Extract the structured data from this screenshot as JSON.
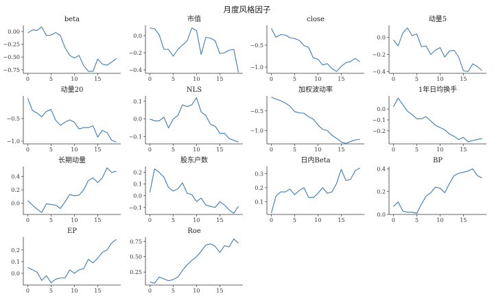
{
  "figure": {
    "suptitle": "月度风格因子"
  },
  "chart_data": [
    {
      "type": "line",
      "title": "beta",
      "x": [
        0,
        1,
        2,
        3,
        4,
        5,
        6,
        7,
        8,
        9,
        10,
        11,
        12,
        13,
        14,
        15,
        16,
        17,
        18,
        19
      ],
      "values": [
        -0.03,
        0.03,
        0.02,
        0.09,
        -0.08,
        -0.07,
        -0.02,
        -0.08,
        -0.32,
        -0.47,
        -0.52,
        -0.47,
        -0.67,
        -0.78,
        -0.78,
        -0.54,
        -0.64,
        -0.66,
        -0.6,
        -0.53
      ],
      "ylim": [
        -0.82,
        0.12
      ],
      "yticks": [
        0.0,
        -0.25,
        -0.5,
        -0.75
      ],
      "ytick_labels": [
        "0.00",
        "−0.25",
        "−0.50",
        "−0.75"
      ],
      "xticks": [
        0,
        5,
        10,
        15
      ],
      "xtick_labels": [
        "0",
        "5",
        "10",
        "15"
      ]
    },
    {
      "type": "line",
      "title": "市值",
      "x": [
        0,
        1,
        2,
        3,
        4,
        5,
        6,
        7,
        8,
        9,
        10,
        11,
        12,
        13,
        14,
        15,
        16,
        17,
        18,
        19
      ],
      "values": [
        0.09,
        0.08,
        0.01,
        -0.16,
        -0.16,
        -0.24,
        -0.16,
        -0.11,
        -0.06,
        0.09,
        0.06,
        -0.22,
        -0.02,
        -0.03,
        -0.06,
        -0.21,
        -0.2,
        -0.17,
        -0.16,
        -0.43
      ],
      "ylim": [
        -0.44,
        0.12
      ],
      "yticks": [
        0.0,
        -0.2,
        -0.4
      ],
      "ytick_labels": [
        "0.0",
        "−0.2",
        "−0.4"
      ],
      "xticks": [
        0,
        5,
        10,
        15
      ],
      "xtick_labels": [
        "0",
        "5",
        "10",
        "15"
      ]
    },
    {
      "type": "line",
      "title": "close",
      "x": [
        0,
        1,
        2,
        3,
        4,
        5,
        6,
        7,
        8,
        9,
        10,
        11,
        12,
        13,
        14,
        15,
        16,
        17,
        18,
        19
      ],
      "values": [
        -0.12,
        -0.32,
        -0.26,
        -0.27,
        -0.33,
        -0.35,
        -0.39,
        -0.51,
        -0.55,
        -0.79,
        -0.82,
        -0.95,
        -0.92,
        -1.03,
        -1.1,
        -0.98,
        -0.9,
        -0.87,
        -0.8,
        -0.88
      ],
      "ylim": [
        -1.14,
        -0.05
      ],
      "yticks": [
        -0.5,
        -1.0
      ],
      "ytick_labels": [
        "−0.5",
        "−1.0"
      ],
      "xticks": [
        0,
        5,
        10,
        15
      ],
      "xtick_labels": [
        "0",
        "5",
        "10",
        "15"
      ]
    },
    {
      "type": "line",
      "title": "动量5",
      "x": [
        0,
        1,
        2,
        3,
        4,
        5,
        6,
        7,
        8,
        9,
        10,
        11,
        12,
        13,
        14,
        15,
        16,
        17,
        18,
        19
      ],
      "values": [
        -0.03,
        -0.1,
        0.05,
        0.11,
        0.02,
        0.04,
        -0.11,
        -0.1,
        -0.2,
        -0.15,
        -0.12,
        -0.23,
        -0.16,
        -0.15,
        -0.23,
        -0.39,
        -0.4,
        -0.31,
        -0.34,
        -0.39
      ],
      "ylim": [
        -0.42,
        0.14
      ],
      "yticks": [
        0.0,
        -0.2,
        -0.4
      ],
      "ytick_labels": [
        "0.0",
        "−0.2",
        "−0.4"
      ],
      "xticks": [
        0,
        5,
        10,
        15
      ],
      "xtick_labels": [
        "0",
        "5",
        "10",
        "15"
      ]
    },
    {
      "type": "line",
      "title": "动量20",
      "x": [
        0,
        1,
        2,
        3,
        4,
        5,
        6,
        7,
        8,
        9,
        10,
        11,
        12,
        13,
        14,
        15,
        16,
        17,
        18,
        19
      ],
      "values": [
        -0.05,
        -0.32,
        -0.38,
        -0.46,
        -0.34,
        -0.3,
        -0.54,
        -0.65,
        -0.58,
        -0.53,
        -0.58,
        -0.73,
        -0.7,
        -0.7,
        -0.66,
        -0.91,
        -0.76,
        -0.81,
        -0.98,
        -1.02
      ],
      "ylim": [
        -1.06,
        0.0
      ],
      "yticks": [
        -0.5,
        -1.0
      ],
      "ytick_labels": [
        "−0.5",
        "−1.0"
      ],
      "xticks": [
        0,
        5,
        10,
        15
      ],
      "xtick_labels": [
        "0",
        "5",
        "10",
        "15"
      ]
    },
    {
      "type": "line",
      "title": "NLS",
      "x": [
        0,
        1,
        2,
        3,
        4,
        5,
        6,
        7,
        8,
        9,
        10,
        11,
        12,
        13,
        14,
        15,
        16,
        17,
        18,
        19
      ],
      "values": [
        0.0,
        -0.01,
        -0.01,
        0.01,
        -0.05,
        0.0,
        0.02,
        0.08,
        0.07,
        0.08,
        0.12,
        0.04,
        0.02,
        -0.03,
        -0.04,
        -0.08,
        -0.08,
        -0.11,
        -0.12,
        -0.13
      ],
      "ylim": [
        -0.14,
        0.13
      ],
      "yticks": [
        0.1,
        0.0,
        -0.1
      ],
      "ytick_labels": [
        "0.1",
        "0.0",
        "−0.1"
      ],
      "xticks": [
        0,
        5,
        10,
        15
      ],
      "xtick_labels": [
        "0",
        "5",
        "10",
        "15"
      ]
    },
    {
      "type": "line",
      "title": "加权波动率",
      "x": [
        0,
        1,
        2,
        3,
        4,
        5,
        6,
        7,
        8,
        9,
        10,
        11,
        12,
        13,
        14,
        15,
        16,
        17,
        18,
        19
      ],
      "values": [
        -0.15,
        -0.2,
        -0.24,
        -0.3,
        -0.38,
        -0.52,
        -0.55,
        -0.56,
        -0.65,
        -0.71,
        -0.86,
        -0.97,
        -1.0,
        -1.12,
        -1.2,
        -1.29,
        -1.33,
        -1.28,
        -1.24,
        -1.22
      ],
      "ylim": [
        -1.34,
        -0.12
      ],
      "yticks": [
        -0.5,
        -1.0
      ],
      "ytick_labels": [
        "−0.5",
        "−1.0"
      ],
      "xticks": [
        0,
        5,
        10,
        15
      ],
      "xtick_labels": [
        "0",
        "5",
        "10",
        "15"
      ]
    },
    {
      "type": "line",
      "title": "1年日均换手",
      "x": [
        0,
        1,
        2,
        3,
        4,
        5,
        6,
        7,
        8,
        9,
        10,
        11,
        12,
        13,
        14,
        15,
        16,
        17,
        18,
        19
      ],
      "values": [
        0.02,
        0.1,
        0.04,
        -0.02,
        -0.05,
        -0.09,
        -0.09,
        -0.07,
        -0.11,
        -0.15,
        -0.17,
        -0.19,
        -0.23,
        -0.25,
        -0.28,
        -0.26,
        -0.3,
        -0.29,
        -0.28,
        -0.27
      ],
      "ylim": [
        -0.32,
        0.12
      ],
      "yticks": [
        0.0,
        -0.1,
        -0.2
      ],
      "ytick_labels": [
        "0.0",
        "−0.1",
        "−0.2"
      ],
      "xticks": [
        0,
        5,
        10,
        15
      ],
      "xtick_labels": [
        "0",
        "5",
        "10",
        "15"
      ]
    },
    {
      "type": "line",
      "title": "长期动量",
      "x": [
        0,
        1,
        2,
        3,
        4,
        5,
        6,
        7,
        8,
        9,
        10,
        11,
        12,
        13,
        14,
        15,
        16,
        17,
        18,
        19
      ],
      "values": [
        0.04,
        -0.03,
        -0.09,
        -0.14,
        -0.01,
        -0.02,
        -0.03,
        -0.08,
        0.02,
        0.13,
        0.11,
        0.12,
        0.2,
        0.34,
        0.38,
        0.31,
        0.38,
        0.53,
        0.46,
        0.48
      ],
      "ylim": [
        -0.17,
        0.55
      ],
      "yticks": [
        0.4,
        0.2,
        0.0
      ],
      "ytick_labels": [
        "0.4",
        "0.2",
        "0.0"
      ],
      "xticks": [
        0,
        5,
        10,
        15
      ],
      "xtick_labels": [
        "0",
        "5",
        "10",
        "15"
      ]
    },
    {
      "type": "line",
      "title": "股东户数",
      "x": [
        0,
        1,
        2,
        3,
        4,
        5,
        6,
        7,
        8,
        9,
        10,
        11,
        12,
        13,
        14,
        15,
        16,
        17,
        18,
        19
      ],
      "values": [
        0.03,
        0.23,
        0.2,
        0.16,
        0.07,
        0.04,
        0.06,
        0.11,
        0.02,
        0.01,
        -0.05,
        -0.02,
        -0.08,
        -0.09,
        -0.1,
        -0.05,
        -0.08,
        -0.12,
        -0.15,
        -0.09
      ],
      "ylim": [
        -0.16,
        0.25
      ],
      "yticks": [
        0.2,
        0.1,
        0.0,
        -0.1
      ],
      "ytick_labels": [
        "0.2",
        "0.1",
        "0.0",
        "−0.1"
      ],
      "xticks": [
        0,
        5,
        10,
        15
      ],
      "xtick_labels": [
        "0",
        "5",
        "10",
        "15"
      ]
    },
    {
      "type": "line",
      "title": "日内Beta",
      "x": [
        0,
        1,
        2,
        3,
        4,
        5,
        6,
        7,
        8,
        9,
        10,
        11,
        12,
        13,
        14,
        15,
        16,
        17,
        18,
        19
      ],
      "values": [
        0.02,
        0.14,
        0.17,
        0.17,
        0.19,
        0.15,
        0.18,
        0.2,
        0.13,
        0.13,
        0.16,
        0.2,
        0.16,
        0.17,
        0.23,
        0.33,
        0.25,
        0.26,
        0.32,
        0.34
      ],
      "ylim": [
        0.01,
        0.35
      ],
      "yticks": [
        0.3,
        0.2,
        0.1
      ],
      "ytick_labels": [
        "0.3",
        "0.2",
        "0.1"
      ],
      "xticks": [
        0,
        5,
        10,
        15
      ],
      "xtick_labels": [
        "0",
        "5",
        "10",
        "15"
      ]
    },
    {
      "type": "line",
      "title": "BP",
      "x": [
        0,
        1,
        2,
        3,
        4,
        5,
        6,
        7,
        8,
        9,
        10,
        11,
        12,
        13,
        14,
        15,
        16,
        17,
        18,
        19
      ],
      "values": [
        0.07,
        0.11,
        0.03,
        0.02,
        0.02,
        0.01,
        0.09,
        0.16,
        0.19,
        0.24,
        0.23,
        0.19,
        0.27,
        0.34,
        0.36,
        0.37,
        0.38,
        0.4,
        0.34,
        0.32
      ],
      "ylim": [
        0.0,
        0.42
      ],
      "yticks": [
        0.4,
        0.2,
        0.0
      ],
      "ytick_labels": [
        "0.4",
        "0.2",
        "0.0"
      ],
      "xticks": [
        0,
        5,
        10,
        15
      ],
      "xtick_labels": [
        "0",
        "5",
        "10",
        "15"
      ]
    },
    {
      "type": "line",
      "title": "EP",
      "x": [
        0,
        1,
        2,
        3,
        4,
        5,
        6,
        7,
        8,
        9,
        10,
        11,
        12,
        13,
        14,
        15,
        16,
        17,
        18,
        19
      ],
      "values": [
        0.05,
        0.03,
        0.01,
        -0.06,
        -0.02,
        -0.08,
        -0.05,
        -0.04,
        -0.04,
        0.03,
        0.0,
        0.03,
        0.04,
        0.12,
        0.09,
        0.13,
        0.18,
        0.2,
        0.26,
        0.29
      ],
      "ylim": [
        -0.1,
        0.31
      ],
      "yticks": [
        0.2,
        0.1,
        0.0
      ],
      "ytick_labels": [
        "0.2",
        "0.1",
        "0.0"
      ],
      "xticks": [
        0,
        5,
        10,
        15
      ],
      "xtick_labels": [
        "0",
        "5",
        "10",
        "15"
      ]
    },
    {
      "type": "line",
      "title": "Roe",
      "x": [
        0,
        1,
        2,
        3,
        4,
        5,
        6,
        7,
        8,
        9,
        10,
        11,
        12,
        13,
        14,
        15,
        16,
        17,
        18,
        19
      ],
      "values": [
        0.09,
        0.07,
        0.17,
        0.14,
        0.11,
        0.13,
        0.17,
        0.28,
        0.37,
        0.44,
        0.5,
        0.59,
        0.69,
        0.71,
        0.67,
        0.57,
        0.68,
        0.66,
        0.79,
        0.72
      ],
      "ylim": [
        0.04,
        0.82
      ],
      "yticks": [
        0.75,
        0.5,
        0.25
      ],
      "ytick_labels": [
        "0.75",
        "0.50",
        "0.25"
      ],
      "xticks": [
        0,
        5,
        10,
        15
      ],
      "xtick_labels": [
        "0",
        "5",
        "10",
        "15"
      ]
    }
  ]
}
